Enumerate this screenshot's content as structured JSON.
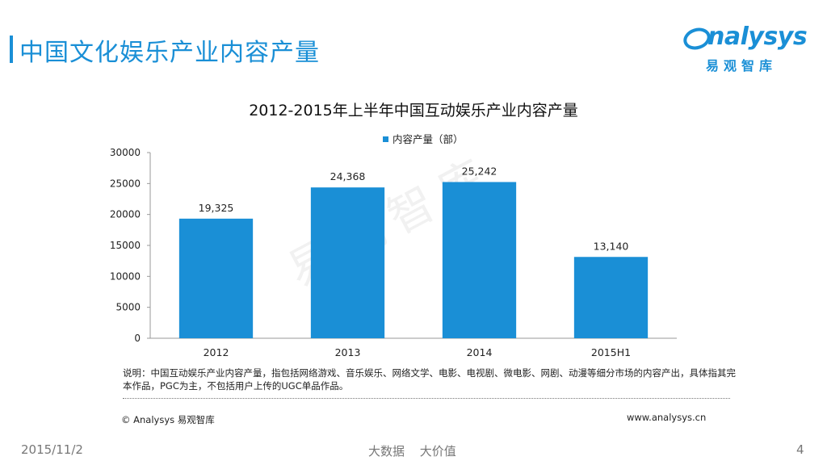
{
  "slide": {
    "title": "中国文化娱乐产业内容产量",
    "logo_word": "nalysys",
    "logo_sub": "易观智库",
    "watermark": "易观智库"
  },
  "chart_data": {
    "type": "bar",
    "title": "2012-2015年上半年中国互动娱乐产业内容产量",
    "categories": [
      "2012",
      "2013",
      "2014",
      "2015H1"
    ],
    "series": [
      {
        "name": "内容产量（部）",
        "values": [
          19325,
          24368,
          25242,
          13140
        ]
      }
    ],
    "data_labels": [
      "19,325",
      "24,368",
      "25,242",
      "13,140"
    ],
    "y_ticks": [
      "0",
      "5000",
      "10000",
      "15000",
      "20000",
      "25000",
      "30000"
    ],
    "ylim": [
      0,
      30000
    ],
    "legend_position": "top-center",
    "grid": false,
    "bar_color": "#1a8fd6"
  },
  "note": "说明：中国互动娱乐产业内容产量，指包括网络游戏、音乐娱乐、网络文学、电影、电视剧、微电影、网剧、动漫等细分市场的内容产出，具体指其完本作品，PGC为主，不包括用户上传的UGC单品作品。",
  "copyright": "© Analysys 易观智库",
  "website": "www.analysys.cn",
  "footer": {
    "date": "2015/11/2",
    "slogan": "大数据 大价值",
    "page": "4"
  }
}
